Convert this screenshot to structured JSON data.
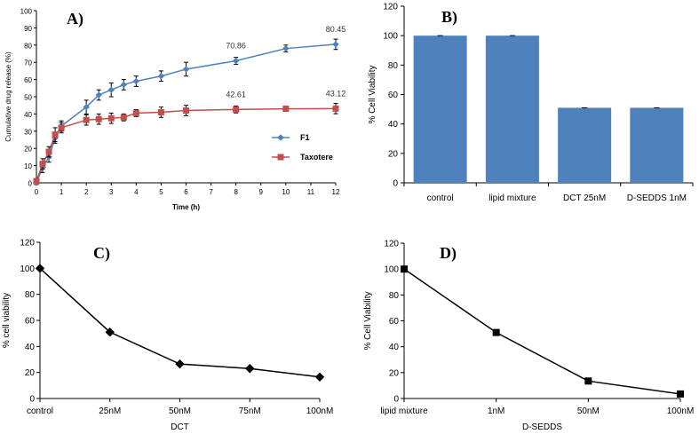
{
  "chart_data": [
    {
      "panel": "A)",
      "type": "line",
      "xlabel": "Time (h)",
      "ylabel": "Cumulative drug release (%)",
      "xlim": [
        0,
        12
      ],
      "ylim": [
        0,
        100
      ],
      "xticks": [
        0,
        1,
        2,
        3,
        4,
        5,
        6,
        7,
        8,
        9,
        10,
        11,
        12
      ],
      "yticks": [
        0,
        10,
        20,
        30,
        40,
        50,
        60,
        70,
        80,
        90,
        100
      ],
      "legend": "right",
      "series": [
        {
          "name": "F1",
          "color": "#4F81BD",
          "marker": "diamond",
          "x": [
            0,
            0.25,
            0.5,
            0.75,
            1,
            2,
            2.5,
            3,
            3.5,
            4,
            5,
            6,
            8,
            10,
            12
          ],
          "y": [
            0,
            9,
            15,
            26,
            33,
            44,
            51,
            54,
            57,
            59,
            62,
            66,
            70.86,
            78,
            80.45
          ],
          "err": [
            1,
            3,
            3,
            3,
            3,
            4,
            3,
            4,
            3,
            3,
            3,
            4,
            2,
            2,
            3
          ],
          "labels": [
            {
              "x": 8,
              "text": "70.86"
            },
            {
              "x": 12,
              "text": "80.45"
            }
          ]
        },
        {
          "name": "Taxotere",
          "color": "#C0504D",
          "marker": "square",
          "x": [
            0,
            0.25,
            0.5,
            0.75,
            1,
            2,
            2.5,
            3,
            3.5,
            4,
            5,
            6,
            8,
            10,
            12
          ],
          "y": [
            1,
            11,
            18,
            28,
            32,
            36.5,
            37,
            37.5,
            38,
            40.5,
            41,
            42,
            42.61,
            43,
            43.12
          ],
          "err": [
            1,
            3,
            3,
            4,
            3,
            3,
            3,
            3,
            2,
            2,
            3,
            3,
            2,
            1.5,
            3
          ],
          "labels": [
            {
              "x": 8,
              "text": "42.61"
            },
            {
              "x": 12,
              "text": "43.12"
            }
          ]
        }
      ]
    },
    {
      "panel": "B)",
      "type": "bar",
      "ylabel": "% Cell Viability",
      "ylim": [
        0,
        120
      ],
      "yticks": [
        0,
        20,
        40,
        60,
        80,
        100,
        120
      ],
      "categories": [
        "control",
        "lipid mixture",
        "DCT 25nM",
        "D-SEDDS 1nM"
      ],
      "values": [
        100,
        100,
        51,
        51
      ],
      "color": "#4F81BD"
    },
    {
      "panel": "C)",
      "type": "line",
      "xlabel": "DCT",
      "ylabel": "% cell viability",
      "ylim": [
        0,
        120
      ],
      "yticks": [
        0,
        20,
        40,
        60,
        80,
        100,
        120
      ],
      "categories": [
        "control",
        "25nM",
        "50nM",
        "75nM",
        "100nM"
      ],
      "values": [
        100,
        51,
        26.5,
        23,
        16.5
      ],
      "marker": "diamond",
      "color": "#000000"
    },
    {
      "panel": "D)",
      "type": "line",
      "xlabel": "D-SEDDS",
      "ylabel": "% Cell Viability",
      "ylim": [
        0,
        120
      ],
      "yticks": [
        0,
        20,
        40,
        60,
        80,
        100,
        120
      ],
      "categories": [
        "lipid mixture",
        "1nM",
        "50nM",
        "100nM"
      ],
      "values": [
        100,
        51,
        13.5,
        3.5
      ],
      "marker": "square",
      "color": "#000000"
    }
  ]
}
